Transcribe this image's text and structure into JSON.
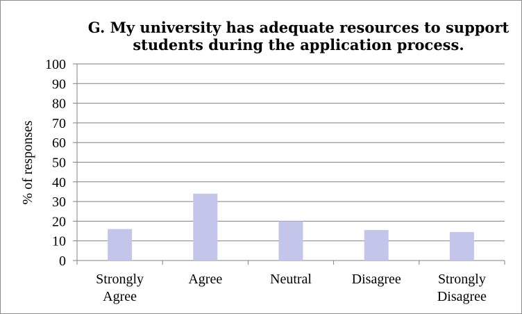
{
  "chart_data": {
    "type": "bar",
    "title": "G. My university has adequate resources to support students during the application process.",
    "title_lines": [
      "G. My university has adequate resources to support",
      "students during the application process."
    ],
    "xlabel": "",
    "ylabel": "% of responses",
    "categories": [
      "Strongly Agree",
      "Agree",
      "Neutral",
      "Disagree",
      "Strongly Disagree"
    ],
    "category_lines": [
      [
        "Strongly",
        "Agree"
      ],
      [
        "Agree"
      ],
      [
        "Neutral"
      ],
      [
        "Disagree"
      ],
      [
        "Strongly",
        "Disagree"
      ]
    ],
    "values": [
      16,
      34,
      20,
      15.5,
      14.5
    ],
    "ylim": [
      0,
      100
    ],
    "yticks": [
      0,
      10,
      20,
      30,
      40,
      50,
      60,
      70,
      80,
      90,
      100
    ],
    "grid": true,
    "legend": "none",
    "bar_color": "#c3c6ea",
    "grid_color": "#808080"
  }
}
